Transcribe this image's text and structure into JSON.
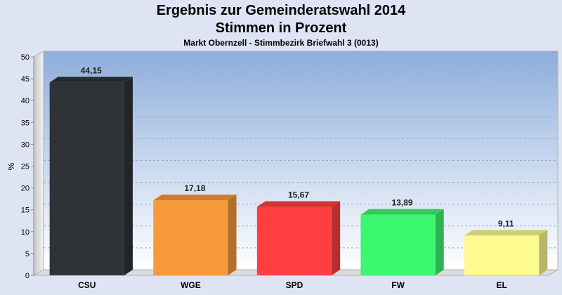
{
  "chart_data": {
    "type": "bar",
    "title": "Ergebnis zur Gemeinderatswahl 2014",
    "subtitle": "Stimmen in Prozent",
    "caption": "Markt Obernzell - Stimmbezirk Briefwahl 3 (0013)",
    "ylabel": "%",
    "xlabel": "",
    "ylim": [
      0,
      50
    ],
    "yticks": [
      "0",
      "5",
      "10",
      "15",
      "20",
      "25",
      "30",
      "35",
      "40",
      "45",
      "50"
    ],
    "grid": true,
    "categories": [
      "CSU",
      "WGE",
      "SPD",
      "FW",
      "EL"
    ],
    "values": [
      44.15,
      17.18,
      15.67,
      13.89,
      9.11
    ],
    "value_labels": [
      "44,15",
      "17,18",
      "15,67",
      "13,89",
      "9,11"
    ],
    "colors": [
      "#2f3338",
      "#f99a3a",
      "#ff3f3f",
      "#3cf870",
      "#fdfb90"
    ]
  }
}
